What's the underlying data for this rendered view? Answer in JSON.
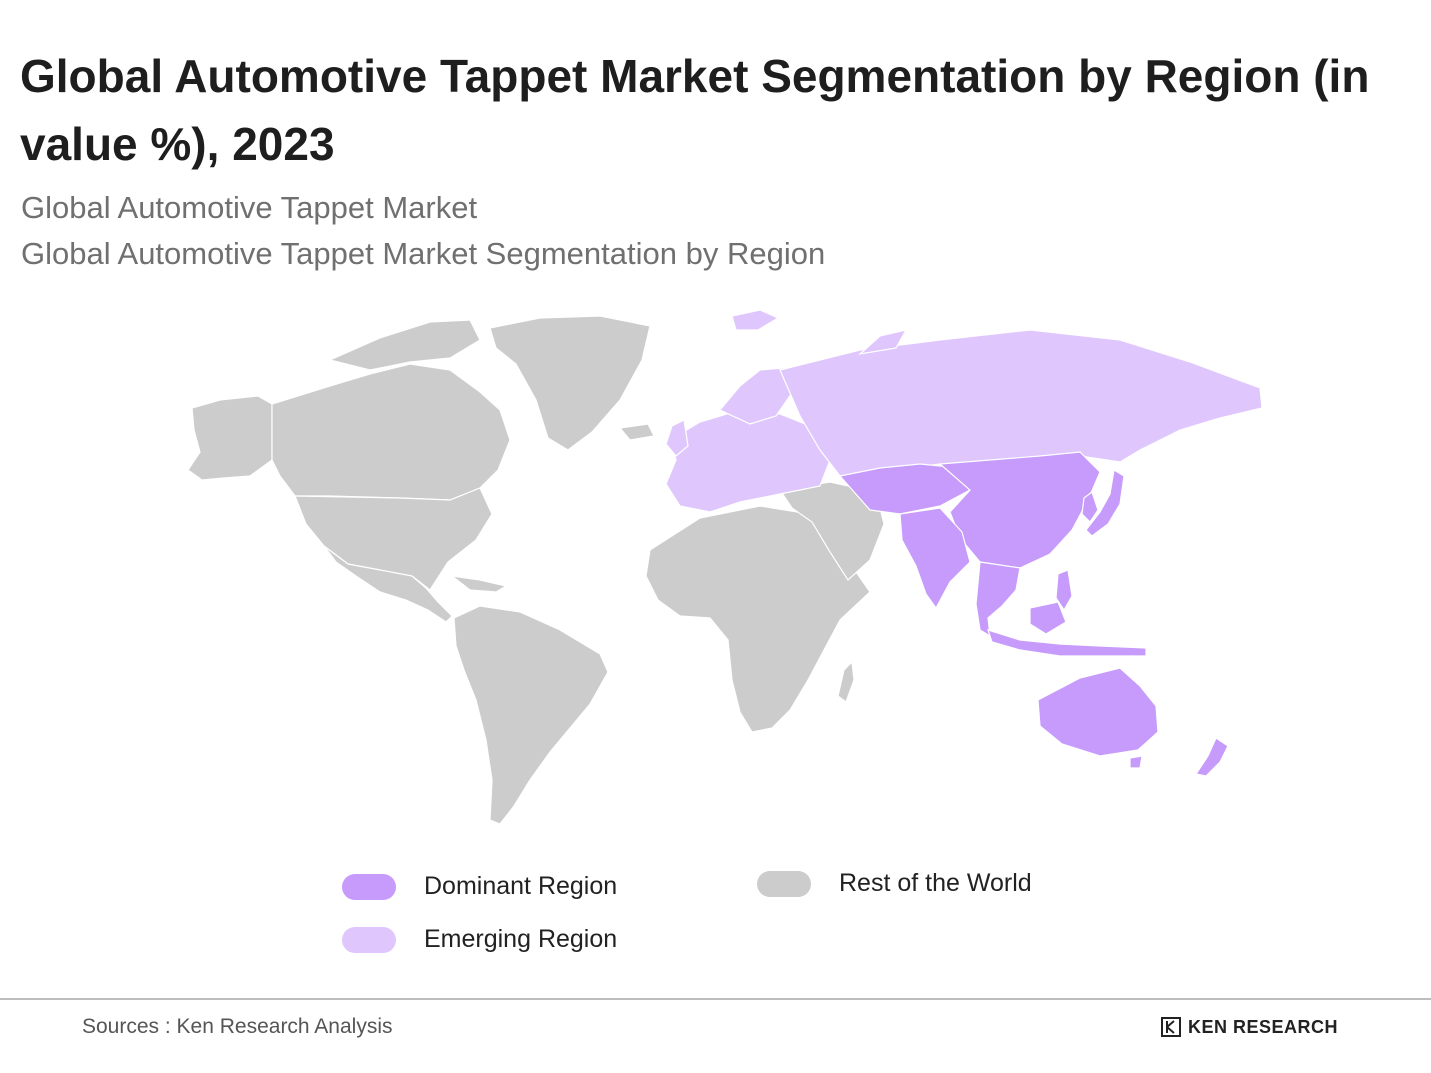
{
  "title": "Global Automotive Tappet Market Segmentation by Region (in value %), 2023",
  "subtitle_1": "Global Automotive Tappet Market",
  "subtitle_2": "Global Automotive Tappet Market Segmentation by Region",
  "legend": {
    "dominant": {
      "label": "Dominant Region",
      "color": "#c79bfb"
    },
    "emerging": {
      "label": "Emerging Region",
      "color": "#dfc7fd"
    },
    "rest": {
      "label": "Rest of the World",
      "color": "#cccccc"
    }
  },
  "regions": {
    "dominant": [
      "China",
      "India",
      "Central Asia",
      "Southeast Asia",
      "Japan",
      "Korea",
      "Indonesia",
      "Australia",
      "New Zealand"
    ],
    "emerging": [
      "Europe",
      "Russia",
      "Scandinavia"
    ],
    "rest": [
      "North America",
      "Greenland",
      "South America",
      "Africa",
      "Middle East"
    ]
  },
  "footer": {
    "source": "Sources : Ken Research Analysis",
    "brand": "KEN RESEARCH",
    "brand_icon": "ken-research-logo-icon"
  }
}
